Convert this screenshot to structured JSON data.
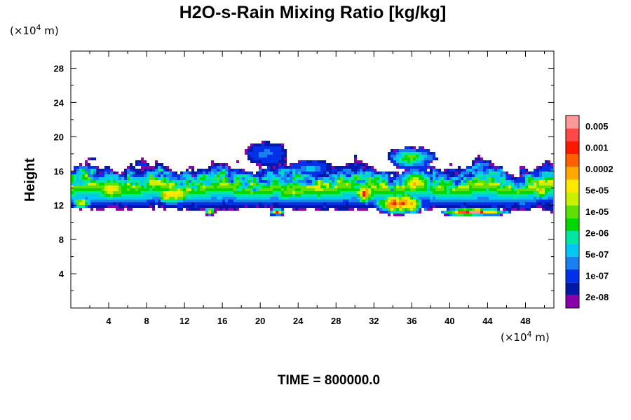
{
  "chart_data": {
    "type": "heatmap",
    "title": "H2O-s-Rain Mixing Ratio [kg/kg]",
    "xlabel": "",
    "ylabel": "Height",
    "x_unit": "(×10",
    "y_unit": "(×10",
    "unit_exponent": "4",
    "unit_suffix": " m)",
    "xlim": [
      0,
      51
    ],
    "ylim": [
      0,
      30
    ],
    "x_ticks": [
      4,
      8,
      12,
      16,
      20,
      24,
      28,
      32,
      36,
      40,
      44,
      48
    ],
    "y_ticks": [
      4,
      8,
      12,
      16,
      20,
      24,
      28
    ],
    "x_tick_labels": [
      "4",
      "8",
      "12",
      "16",
      "20",
      "24",
      "28",
      "32",
      "36",
      "40",
      "44",
      "48"
    ],
    "y_tick_labels": [
      "4",
      "8",
      "12",
      "16",
      "20",
      "24",
      "28"
    ],
    "colorbar": {
      "labels": [
        "0.005",
        "0.001",
        "0.0002",
        "5e-05",
        "1e-05",
        "2e-06",
        "5e-07",
        "1e-07",
        "2e-08"
      ],
      "colors": [
        "#8a00a8",
        "#0018a8",
        "#0030e8",
        "#1880f0",
        "#00c8f0",
        "#00e8a0",
        "#00d800",
        "#60e000",
        "#c8f000",
        "#ffe800",
        "#ffa800",
        "#ff6000",
        "#ff1800",
        "#ff4848",
        "#ff9898"
      ]
    },
    "footer": "TIME = 800000.0",
    "features": [
      {
        "type": "band",
        "x_start": 0.0,
        "x_end": 51.0,
        "bottom": 11.5,
        "top": 16.5,
        "peak_level": 8
      },
      {
        "type": "cell",
        "x_center": 34.8,
        "y_center": 12.2,
        "x_radius": 3.0,
        "y_radius": 1.5,
        "peak_level": 13
      },
      {
        "type": "cell",
        "x_center": 31.0,
        "y_center": 13.4,
        "x_radius": 1.3,
        "y_radius": 1.3,
        "peak_level": 12
      },
      {
        "type": "cell",
        "x_center": 36.4,
        "y_center": 14.6,
        "x_radius": 1.8,
        "y_radius": 1.6,
        "peak_level": 10
      },
      {
        "type": "cell",
        "x_center": 10.7,
        "y_center": 13.3,
        "x_radius": 2.6,
        "y_radius": 1.3,
        "peak_level": 10
      },
      {
        "type": "cell",
        "x_center": 4.3,
        "y_center": 14.0,
        "x_radius": 2.5,
        "y_radius": 1.7,
        "peak_level": 9
      },
      {
        "type": "cell",
        "x_center": 23.5,
        "y_center": 13.6,
        "x_radius": 3.0,
        "y_radius": 1.3,
        "peak_level": 8
      },
      {
        "type": "cell",
        "x_center": 42.6,
        "y_center": 11.2,
        "x_radius": 3.8,
        "y_radius": 0.5,
        "peak_level": 14
      },
      {
        "type": "cell",
        "x_center": 21.8,
        "y_center": 11.2,
        "x_radius": 0.9,
        "y_radius": 0.5,
        "peak_level": 12
      },
      {
        "type": "cell",
        "x_center": 14.7,
        "y_center": 11.3,
        "x_radius": 0.6,
        "y_radius": 0.5,
        "peak_level": 9
      },
      {
        "type": "cell",
        "x_center": 1.1,
        "y_center": 12.3,
        "x_radius": 1.2,
        "y_radius": 0.8,
        "peak_level": 9
      },
      {
        "type": "cell",
        "x_center": 49.5,
        "y_center": 13.8,
        "x_radius": 1.4,
        "y_radius": 1.4,
        "peak_level": 9
      },
      {
        "type": "cell",
        "x_center": 20.6,
        "y_center": 18.0,
        "x_radius": 2.4,
        "y_radius": 1.4,
        "peak_level": 2
      },
      {
        "type": "cell",
        "x_center": 36.0,
        "y_center": 17.6,
        "x_radius": 2.5,
        "y_radius": 1.3,
        "peak_level": 7
      },
      {
        "type": "cell",
        "x_center": 25.4,
        "y_center": 16.3,
        "x_radius": 2.2,
        "y_radius": 1.0,
        "peak_level": 3
      }
    ]
  }
}
